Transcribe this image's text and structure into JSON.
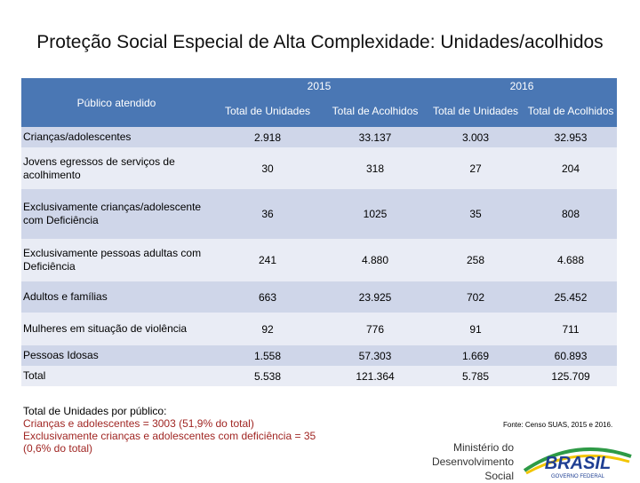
{
  "title": "Proteção Social Especial de Alta Complexidade: Unidades/acolhidos",
  "table": {
    "col_publico": "Público atendido",
    "year1": "2015",
    "year2": "2016",
    "sub": [
      "Total de Unidades",
      "Total de Acolhidos",
      "Total de Unidades",
      "Total de Acolhidos"
    ],
    "rows": [
      {
        "label": "Crianças/adolescentes",
        "v": [
          "2.918",
          "33.137",
          "3.003",
          "32.953"
        ]
      },
      {
        "label": "Jovens egressos de serviços de acolhimento",
        "v": [
          "30",
          "318",
          "27",
          "204"
        ]
      },
      {
        "label": "Exclusivamente crianças/adolescente com Deficiência",
        "v": [
          "36",
          "1025",
          "35",
          "808"
        ]
      },
      {
        "label": "Exclusivamente pessoas adultas com Deficiência",
        "v": [
          "241",
          "4.880",
          "258",
          "4.688"
        ]
      },
      {
        "label": "Adultos e famílias",
        "v": [
          "663",
          "23.925",
          "702",
          "25.452"
        ]
      },
      {
        "label": "Mulheres em situação de violência",
        "v": [
          "92",
          "776",
          "91",
          "711"
        ]
      },
      {
        "label": "Pessoas Idosas",
        "v": [
          "1.558",
          "57.303",
          "1.669",
          "60.893"
        ]
      },
      {
        "label": "Total",
        "v": [
          "5.538",
          "121.364",
          "5.785",
          "125.709"
        ]
      }
    ]
  },
  "footnote": {
    "heading": "Total de Unidades por público:",
    "line1": "Crianças e adolescentes = 3003 (51,9% do total)",
    "line2": "Exclusivamente crianças e adolescentes com deficiência = 35",
    "line3": "(0,6% do total)"
  },
  "source": "Fonte: Censo SUAS, 2015 e 2016.",
  "ministry": {
    "line1": "Ministério do",
    "line2": "Desenvolvimento",
    "line3": "Social"
  },
  "logo": {
    "text": "BRASIL",
    "tagline": "GOVERNO FEDERAL",
    "colors": {
      "blue": "#1f3f93",
      "green": "#2e9a46",
      "yellow": "#f2c500"
    }
  }
}
